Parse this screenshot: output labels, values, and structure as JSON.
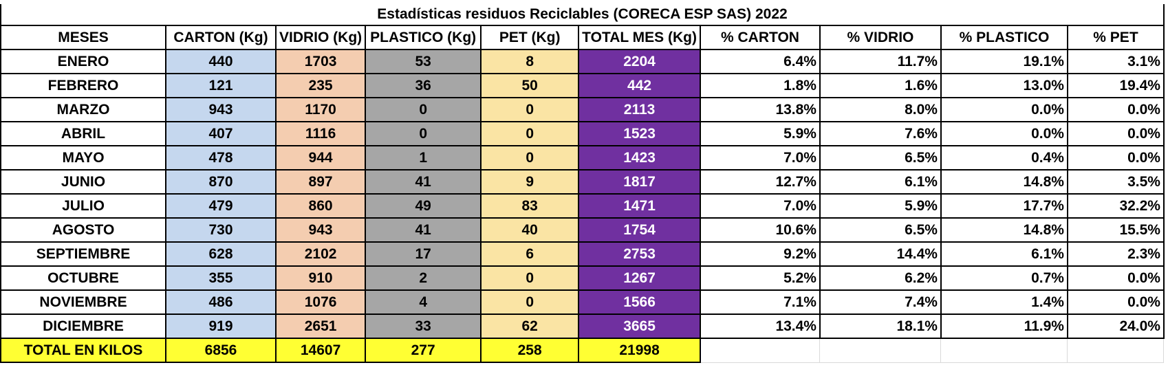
{
  "title": "Estadísticas residuos Reciclables (CORECA ESP SAS) 2022",
  "headers": [
    "MESES",
    "CARTON (Kg)",
    "VIDRIO (Kg)",
    "PLASTICO (Kg)",
    "PET (Kg)",
    "TOTAL MES (Kg)",
    "% CARTON",
    "% VIDRIO",
    "% PLASTICO",
    "% PET"
  ],
  "rows": [
    [
      "ENERO",
      "440",
      "1703",
      "53",
      "8",
      "2204",
      "6.4%",
      "11.7%",
      "19.1%",
      "3.1%"
    ],
    [
      "FEBRERO",
      "121",
      "235",
      "36",
      "50",
      "442",
      "1.8%",
      "1.6%",
      "13.0%",
      "19.4%"
    ],
    [
      "MARZO",
      "943",
      "1170",
      "0",
      "0",
      "2113",
      "13.8%",
      "8.0%",
      "0.0%",
      "0.0%"
    ],
    [
      "ABRIL",
      "407",
      "1116",
      "0",
      "0",
      "1523",
      "5.9%",
      "7.6%",
      "0.0%",
      "0.0%"
    ],
    [
      "MAYO",
      "478",
      "944",
      "1",
      "0",
      "1423",
      "7.0%",
      "6.5%",
      "0.4%",
      "0.0%"
    ],
    [
      "JUNIO",
      "870",
      "897",
      "41",
      "9",
      "1817",
      "12.7%",
      "6.1%",
      "14.8%",
      "3.5%"
    ],
    [
      "JULIO",
      "479",
      "860",
      "49",
      "83",
      "1471",
      "7.0%",
      "5.9%",
      "17.7%",
      "32.2%"
    ],
    [
      "AGOSTO",
      "730",
      "943",
      "41",
      "40",
      "1754",
      "10.6%",
      "6.5%",
      "14.8%",
      "15.5%"
    ],
    [
      "SEPTIEMBRE",
      "628",
      "2102",
      "17",
      "6",
      "2753",
      "9.2%",
      "14.4%",
      "6.1%",
      "2.3%"
    ],
    [
      "OCTUBRE",
      "355",
      "910",
      "2",
      "0",
      "1267",
      "5.2%",
      "6.2%",
      "0.7%",
      "0.0%"
    ],
    [
      "NOVIEMBRE",
      "486",
      "1076",
      "4",
      "0",
      "1566",
      "7.1%",
      "7.4%",
      "1.4%",
      "0.0%"
    ],
    [
      "DICIEMBRE",
      "919",
      "2651",
      "33",
      "62",
      "3665",
      "13.4%",
      "18.1%",
      "11.9%",
      "24.0%"
    ]
  ],
  "totals": [
    "TOTAL EN KILOS",
    "6856",
    "14607",
    "277",
    "258",
    "21998"
  ],
  "colors": {
    "carton": "#c5d7ee",
    "vidrio": "#f4cdb0",
    "plastico": "#a6a6a6",
    "pet": "#fae4a4",
    "total_mes": "#7030a0",
    "totals_row": "#ffff33"
  }
}
